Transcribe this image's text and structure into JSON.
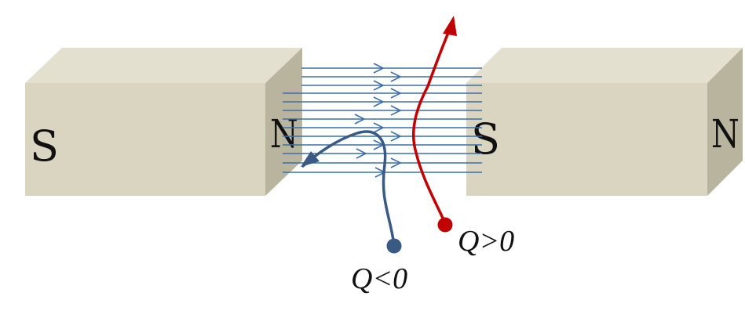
{
  "colors": {
    "magnet_top": "#e3e0cf",
    "magnet_front": "#d9d5c0",
    "magnet_side": "#b8b49e",
    "magnet_edge": "#c9c5ae",
    "field_line": "#3c6fa9",
    "negative_charge": "#3a5a86",
    "positive_charge": "#c10000"
  },
  "magnets": {
    "left": {
      "left_pole": "S",
      "right_pole": "N"
    },
    "right": {
      "left_pole": "S",
      "right_pole": "N"
    }
  },
  "charges": {
    "negative": {
      "label": "Q<0"
    },
    "positive": {
      "label": "Q>0"
    }
  }
}
